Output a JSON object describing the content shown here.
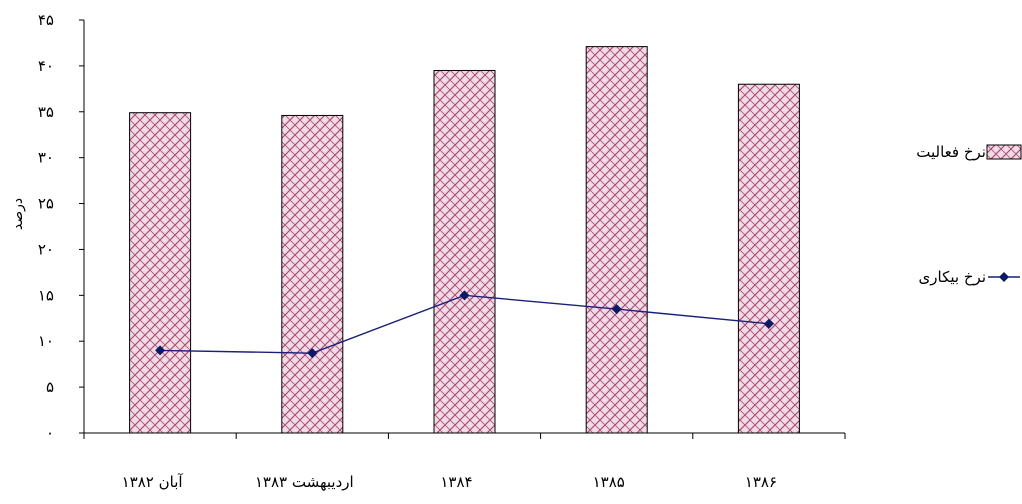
{
  "chart_data": {
    "type": "bar",
    "categories": [
      "آبان ۱۳۸۲",
      "اردیبهشت ۱۳۸۳",
      "۱۳۸۴",
      "۱۳۸۵",
      "۱۳۸۶"
    ],
    "series": [
      {
        "name": "نرخ فعالیت",
        "type": "bar",
        "values": [
          34.9,
          34.6,
          39.5,
          42.1,
          38.0
        ]
      },
      {
        "name": "نرخ بیکاری",
        "type": "line",
        "values": [
          9.0,
          8.7,
          15.0,
          13.5,
          11.9
        ]
      }
    ],
    "ylabel": "درصد",
    "xlabel": "",
    "ylim": [
      0,
      45
    ],
    "yticks": [
      0,
      5,
      10,
      15,
      20,
      25,
      30,
      35,
      40,
      45
    ],
    "ytick_labels": [
      "۰",
      "۵",
      "۱۰",
      "۱۵",
      "۲۰",
      "۲۵",
      "۳۰",
      "۳۵",
      "۴۰",
      "۴۵"
    ],
    "grid": false,
    "legend_position": "right",
    "colors": {
      "bar_fill": "#f3dbe6",
      "bar_hatch": "#a8507a",
      "line": "#1b1f7a",
      "marker": "#0b1a66",
      "axis": "#000000"
    }
  }
}
